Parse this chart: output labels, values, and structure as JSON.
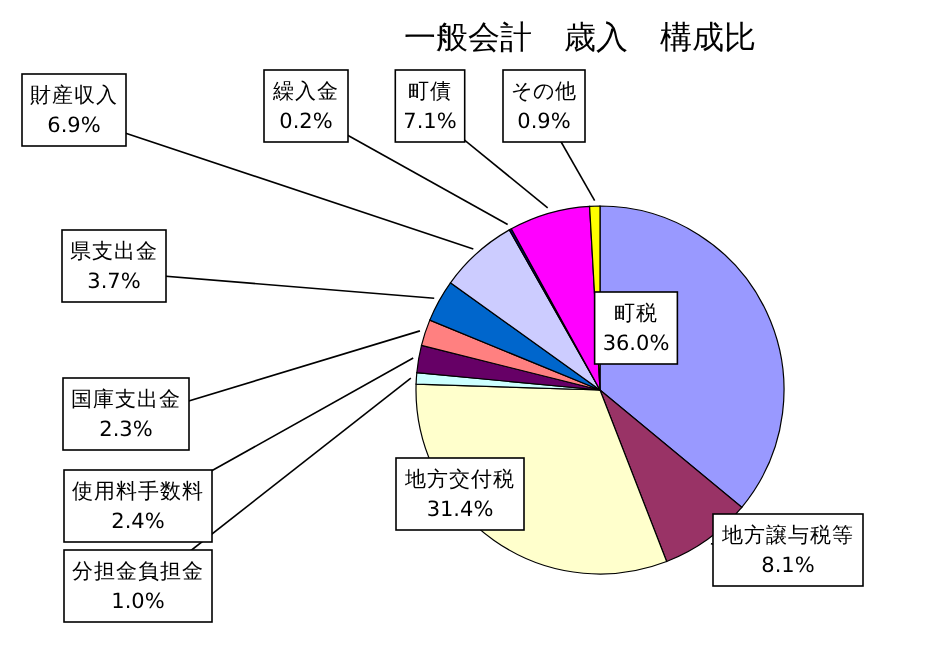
{
  "chart_data": {
    "type": "pie",
    "title": "一般会計　歳入　構成比",
    "categories": [
      "町税",
      "地方譲与税等",
      "地方交付税",
      "分担金負担金",
      "使用料手数料",
      "国庫支出金",
      "県支出金",
      "財産収入",
      "繰入金",
      "町債",
      "その他"
    ],
    "values": [
      36.0,
      8.1,
      31.4,
      1.0,
      2.4,
      2.3,
      3.7,
      6.9,
      0.2,
      7.1,
      0.9
    ],
    "value_labels": [
      "36.0%",
      "8.1%",
      "31.4%",
      "1.0%",
      "2.4%",
      "2.3%",
      "3.7%",
      "6.9%",
      "0.2%",
      "7.1%",
      "0.9%"
    ],
    "colors": [
      "#9999ff",
      "#993366",
      "#ffffcc",
      "#ccffff",
      "#660066",
      "#ff8080",
      "#0066cc",
      "#ccccff",
      "#000080",
      "#ff00ff",
      "#ffff00"
    ]
  }
}
